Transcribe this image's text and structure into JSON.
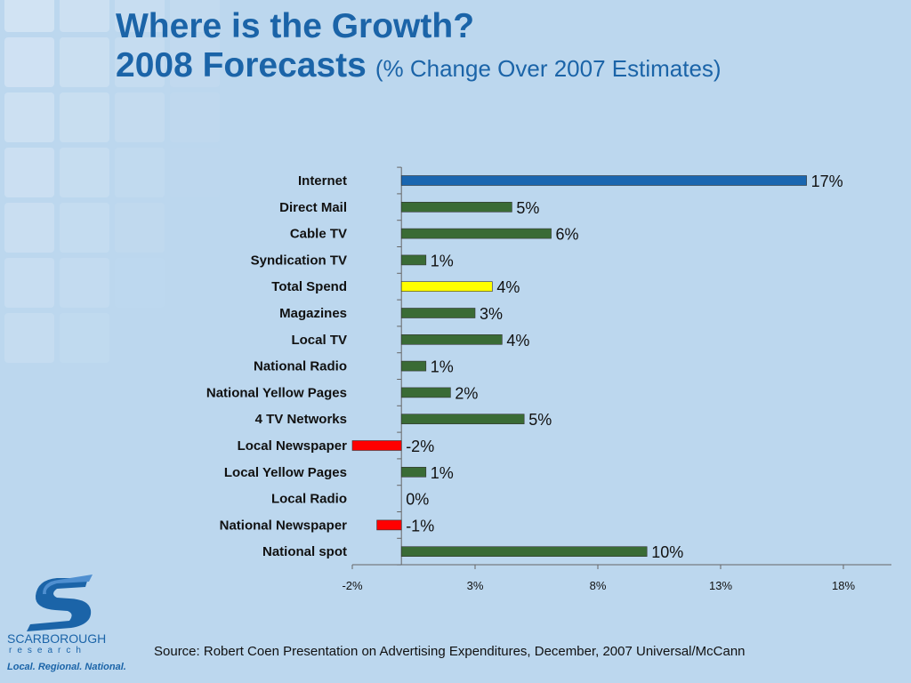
{
  "title": {
    "line1": "Where is the Growth?",
    "line2_main": "2008 Forecasts",
    "line2_sub": "(% Change Over 2007 Estimates)"
  },
  "source": "Source: Robert Coen Presentation on Advertising Expenditures, December, 2007  Universal/McCann",
  "logo": {
    "name": "SCARBOROUGH",
    "sub": "research",
    "tagline": "Local. Regional. National."
  },
  "colors": {
    "title": "#1b64a8",
    "internet_bar": "#1a66b0",
    "default_bar": "#3a6b35",
    "highlight_bar": "#ffff00",
    "negative_bar": "#ff0000"
  },
  "chart_data": {
    "type": "bar",
    "orientation": "horizontal",
    "categories": [
      "Internet",
      "Direct Mail",
      "Cable TV",
      "Syndication TV",
      "Total Spend",
      "Magazines",
      "Local TV",
      "National Radio",
      "National Yellow Pages",
      "4 TV Networks",
      "Local Newspaper",
      "Local Yellow Pages",
      "Local Radio",
      "National Newspaper",
      "National spot"
    ],
    "values": [
      16.5,
      4.5,
      6.1,
      1.0,
      3.7,
      3.0,
      4.1,
      1.0,
      2.0,
      5.0,
      -2.0,
      1.0,
      0.0,
      -1.0,
      10.0
    ],
    "data_labels": [
      "17%",
      "5%",
      "6%",
      "1%",
      "4%",
      "3%",
      "4%",
      "1%",
      "2%",
      "5%",
      "-2%",
      "1%",
      "0%",
      "-1%",
      "10%"
    ],
    "bar_colors": [
      "internet",
      "default",
      "default",
      "default",
      "highlight",
      "default",
      "default",
      "default",
      "default",
      "default",
      "negative",
      "default",
      "default",
      "negative",
      "default"
    ],
    "xlim": [
      -2,
      18
    ],
    "xticks": [
      -2,
      3,
      8,
      13,
      18
    ],
    "xtick_labels": [
      "-2%",
      "3%",
      "8%",
      "13%",
      "18%"
    ],
    "title": "",
    "xlabel": "",
    "ylabel": "",
    "grid": false,
    "legend": "none"
  }
}
